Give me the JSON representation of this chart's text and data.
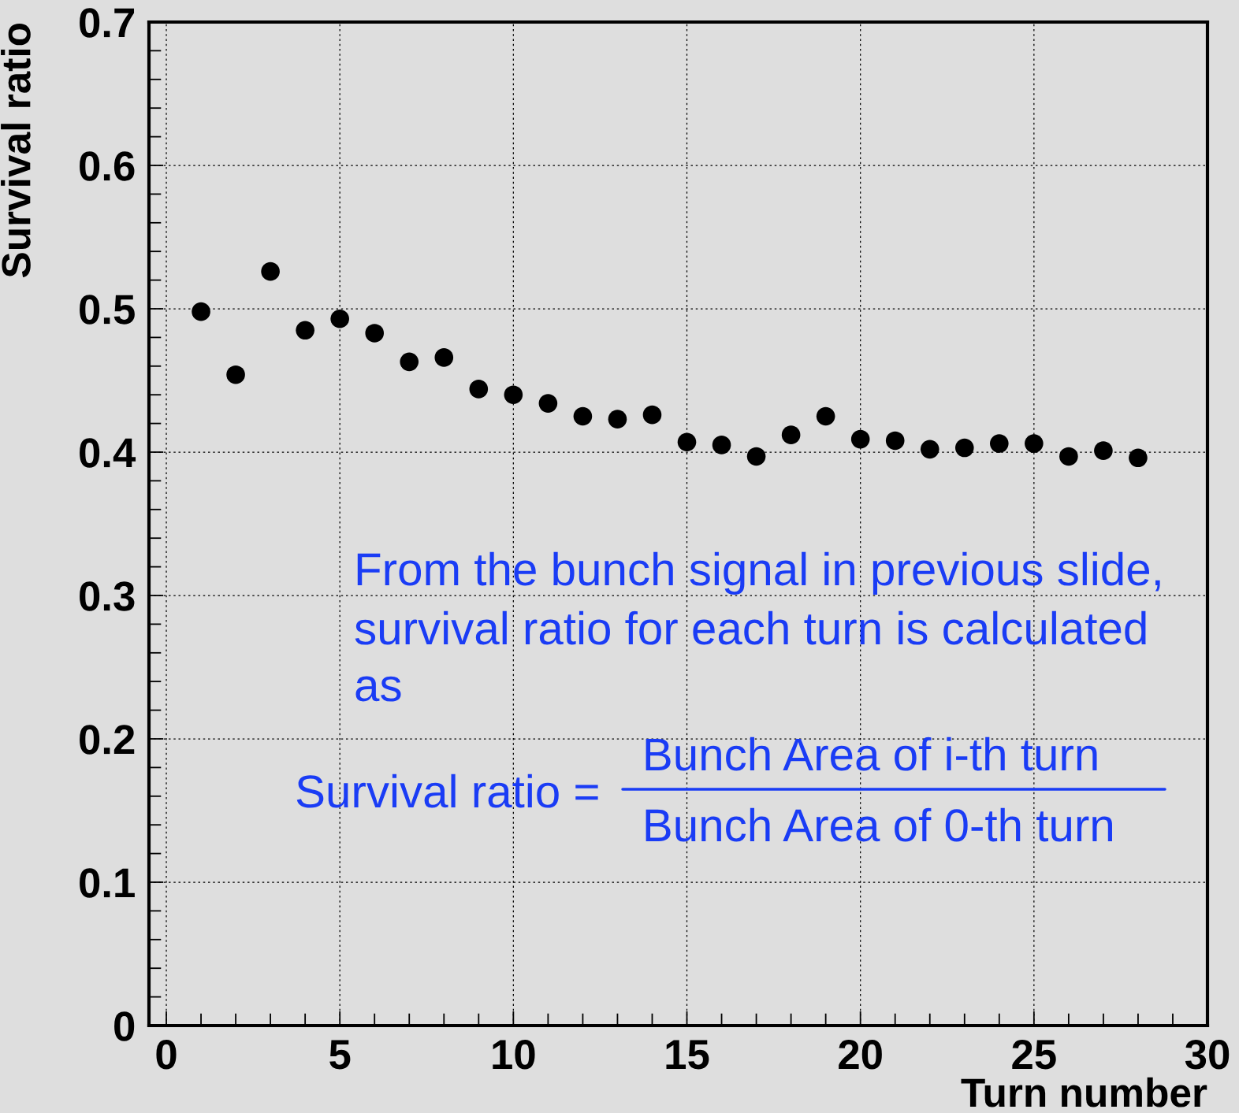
{
  "chart_data": {
    "type": "scatter",
    "xlabel": "Turn number",
    "ylabel": "Survival ratio",
    "x": [
      1,
      2,
      3,
      4,
      5,
      6,
      7,
      8,
      9,
      10,
      11,
      12,
      13,
      14,
      15,
      16,
      17,
      18,
      19,
      20,
      21,
      22,
      23,
      24,
      25,
      26,
      27,
      28
    ],
    "series": [
      {
        "color": "#000000",
        "values": [
          0.498,
          0.454,
          0.526,
          0.485,
          0.493,
          0.483,
          0.463,
          0.466,
          0.444,
          0.44,
          0.434,
          0.425,
          0.423,
          0.426,
          0.407,
          0.405,
          0.397,
          0.412,
          0.425,
          0.409,
          0.408,
          0.402,
          0.403,
          0.406,
          0.406,
          0.397,
          0.401,
          0.396
        ]
      }
    ],
    "marker": "circle",
    "grid": true,
    "xlim": [
      -0.5,
      30
    ],
    "ylim": [
      0,
      0.7
    ],
    "xticks": [
      0,
      5,
      10,
      15,
      20,
      25,
      30
    ],
    "yticks": [
      0,
      0.1,
      0.2,
      0.3,
      0.4,
      0.5,
      0.6,
      0.7
    ],
    "annotations": [
      "From the bunch signal in previous slide,",
      "survival ratio for each turn is calculated",
      "as",
      "Survival ratio =",
      "Bunch Area of i-th turn",
      "Bunch Area of 0-th turn"
    ]
  }
}
